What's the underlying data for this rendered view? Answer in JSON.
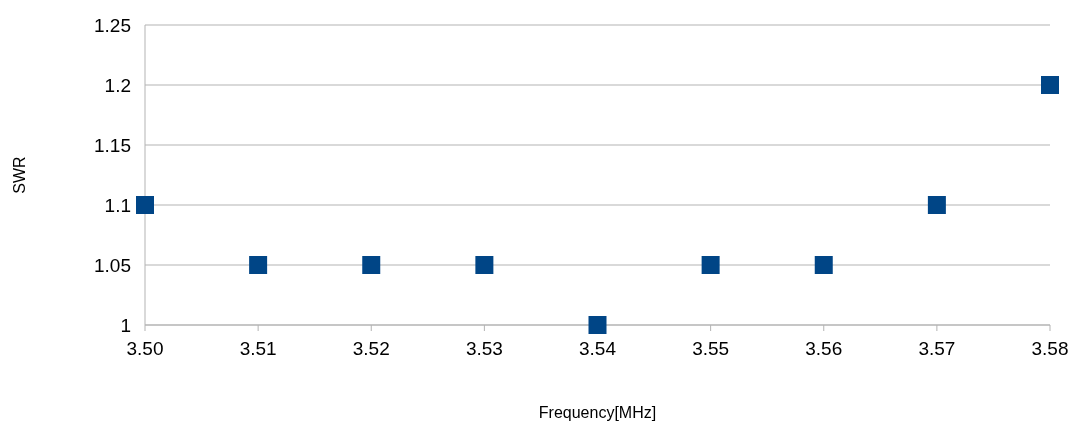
{
  "chart_data": {
    "type": "scatter",
    "xlabel": "Frequency[MHz]",
    "ylabel": "SWR",
    "x": [
      3.5,
      3.51,
      3.52,
      3.53,
      3.54,
      3.55,
      3.56,
      3.57,
      3.58
    ],
    "series": [
      {
        "color": "#004586",
        "values": [
          1.1,
          1.05,
          1.05,
          1.05,
          1,
          1.05,
          1.05,
          1.1,
          1.2
        ]
      }
    ],
    "xlim": [
      3.5,
      3.58
    ],
    "ylim": [
      1,
      1.25
    ],
    "xticks": [
      {
        "value": 3.5,
        "label": "3.50"
      },
      {
        "value": 3.51,
        "label": "3.51"
      },
      {
        "value": 3.52,
        "label": "3.52"
      },
      {
        "value": 3.53,
        "label": "3.53"
      },
      {
        "value": 3.54,
        "label": "3.54"
      },
      {
        "value": 3.55,
        "label": "3.55"
      },
      {
        "value": 3.56,
        "label": "3.56"
      },
      {
        "value": 3.57,
        "label": "3.57"
      },
      {
        "value": 3.58,
        "label": "3.58"
      }
    ],
    "yticks": [
      1,
      1.05,
      1.1,
      1.15,
      1.2,
      1.25
    ],
    "grid": "y",
    "marker": "square"
  }
}
